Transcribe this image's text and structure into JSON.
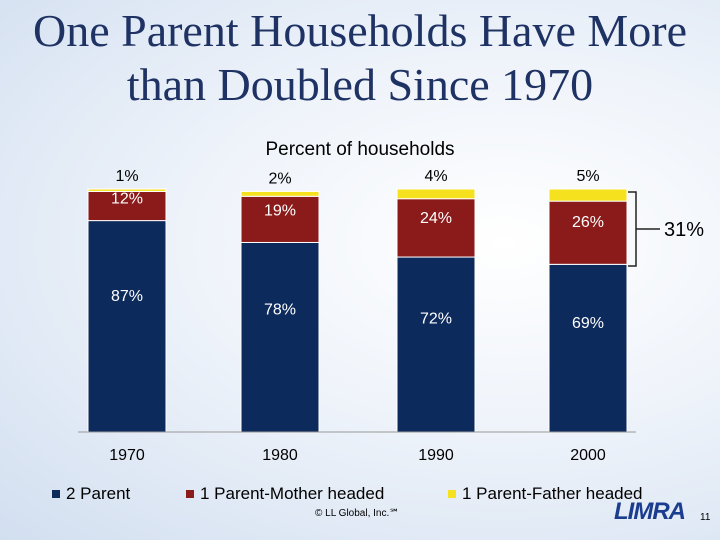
{
  "slide": {
    "title_line1": "One Parent Households Have More",
    "title_line2": "than Doubled Since 1970",
    "copyright": "© LL Global, Inc.℠",
    "logo_text": "LIMRA",
    "page_number": "11"
  },
  "chart_data": {
    "type": "bar",
    "stacked": true,
    "subtitle": "Percent of households",
    "categories": [
      "1970",
      "1980",
      "1990",
      "2000"
    ],
    "series": [
      {
        "name": "2 Parent",
        "color": "#0d2a5c",
        "values": [
          87,
          78,
          72,
          69
        ],
        "labels": [
          "87%",
          "78%",
          "72%",
          "69%"
        ]
      },
      {
        "name": "1 Parent-Mother headed",
        "color": "#8b1a1a",
        "values": [
          12,
          19,
          24,
          26
        ],
        "labels": [
          "12%",
          "19%",
          "24%",
          "26%"
        ]
      },
      {
        "name": "1 Parent-Father headed",
        "color": "#f5e11e",
        "values": [
          1,
          2,
          4,
          5
        ],
        "labels": [
          "1%",
          "2%",
          "4%",
          "5%"
        ]
      }
    ],
    "ylim": [
      0,
      100
    ],
    "legend_position": "bottom",
    "grid": false,
    "annotation": {
      "text": "31%",
      "spans": "single-parent share in 2000"
    }
  }
}
